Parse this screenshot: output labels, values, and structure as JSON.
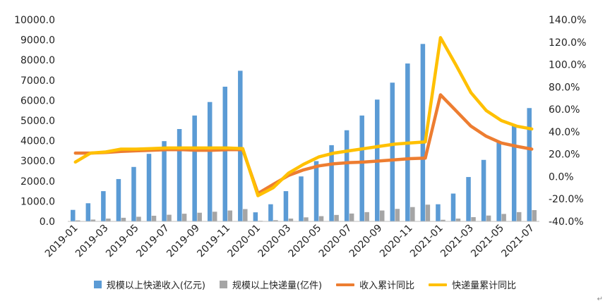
{
  "chart_data": {
    "type": "bar",
    "x": [
      "2019-01",
      "2019-02",
      "2019-03",
      "2019-04",
      "2019-05",
      "2019-06",
      "2019-07",
      "2019-08",
      "2019-09",
      "2019-10",
      "2019-11",
      "2019-12",
      "2020-01",
      "2020-02",
      "2020-03",
      "2020-04",
      "2020-05",
      "2020-06",
      "2020-07",
      "2020-08",
      "2020-09",
      "2020-10",
      "2020-11",
      "2020-12",
      "2021-01",
      "2021-02",
      "2021-03",
      "2021-04",
      "2021-05",
      "2021-06",
      "2021-07"
    ],
    "x_tick_labels": [
      "2019-01",
      "2019-03",
      "2019-05",
      "2019-07",
      "2019-09",
      "2019-11",
      "2020-01",
      "2020-03",
      "2020-05",
      "2020-07",
      "2020-09",
      "2020-11",
      "2021-01",
      "2021-03",
      "2021-05",
      "2021-07"
    ],
    "y_left": {
      "ylim": [
        0,
        10000
      ],
      "ticks": [
        "0.0",
        "1000.0",
        "2000.0",
        "3000.0",
        "4000.0",
        "5000.0",
        "6000.0",
        "7000.0",
        "8000.0",
        "9000.0",
        "10000.0"
      ]
    },
    "y_right": {
      "ylim": [
        -40,
        140
      ],
      "ticks": [
        "-40.0%",
        "-20.0%",
        "0.0%",
        "20.0%",
        "40.0%",
        "60.0%",
        "80.0%",
        "100.0%",
        "120.0%",
        "140.0%"
      ]
    },
    "series": [
      {
        "name": "规模以上快递收入(亿元)",
        "type": "bar",
        "axis": "left",
        "color": "#5B9BD5",
        "values": [
          570,
          900,
          1500,
          2100,
          2700,
          3350,
          3980,
          4580,
          5250,
          5920,
          6680,
          7470,
          450,
          850,
          1500,
          2230,
          2990,
          3780,
          4520,
          5250,
          6040,
          6880,
          7830,
          8800,
          850,
          1380,
          2200,
          3050,
          3900,
          4730,
          5620
        ]
      },
      {
        "name": "规模以上快递量(亿件)",
        "type": "bar",
        "axis": "left",
        "color": "#A5A5A5",
        "values": [
          50,
          90,
          140,
          180,
          230,
          280,
          330,
          380,
          430,
          480,
          540,
          610,
          30,
          60,
          140,
          200,
          260,
          320,
          390,
          460,
          540,
          620,
          710,
          830,
          80,
          140,
          210,
          290,
          370,
          460,
          560
        ]
      },
      {
        "name": "收入累计同比",
        "type": "line",
        "axis": "right",
        "color": "#ED7D31",
        "values": [
          21,
          21,
          21.5,
          22.5,
          23,
          23.5,
          24,
          24,
          23.5,
          23.5,
          24,
          24,
          -15,
          -7,
          1,
          6,
          9.5,
          11.5,
          12.5,
          13,
          14,
          15,
          16,
          16.5,
          73,
          59,
          45,
          36,
          30,
          27,
          24.5
        ]
      },
      {
        "name": "快递量累计同比",
        "type": "line",
        "axis": "right",
        "color": "#FFC000",
        "values": [
          13,
          21,
          22,
          24.5,
          24.5,
          25,
          25.5,
          25.5,
          25.5,
          25.5,
          25.5,
          25,
          -17,
          -10,
          3,
          11,
          17.5,
          21,
          23,
          25,
          27,
          29,
          30,
          31,
          124,
          100,
          75,
          59,
          50,
          45,
          42.5
        ]
      }
    ],
    "grid": false,
    "legend_position": "bottom"
  },
  "legend": {
    "items": [
      {
        "label": "规模以上快递收入(亿元)",
        "color": "#5B9BD5",
        "kind": "box"
      },
      {
        "label": "规模以上快递量(亿件)",
        "color": "#A5A5A5",
        "kind": "box"
      },
      {
        "label": "收入累计同比",
        "color": "#ED7D31",
        "kind": "line"
      },
      {
        "label": "快递量累计同比",
        "color": "#FFC000",
        "kind": "line"
      }
    ]
  },
  "corner_mark": "↵"
}
